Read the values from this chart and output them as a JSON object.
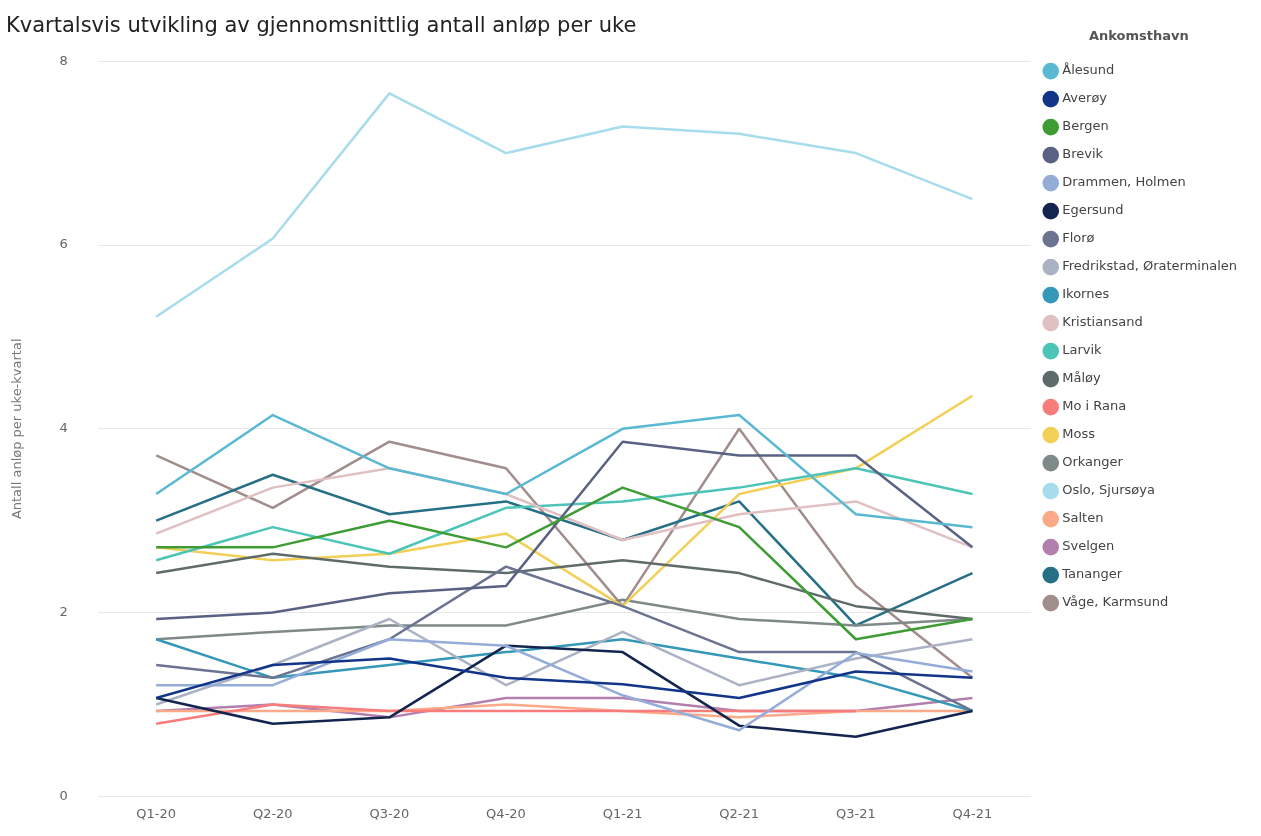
{
  "chart_data": {
    "type": "line",
    "title": "Kvartalsvis utvikling av gjennomsnittlig antall anløp per uke",
    "ylabel": "Antall anløp per uke-kvartal",
    "legend_title": "Ankomsthavn",
    "legend": "right",
    "grid": "y",
    "marker": "none",
    "line_style": "solid",
    "categories": [
      "Q1-20",
      "Q2-20",
      "Q3-20",
      "Q4-20",
      "Q1-21",
      "Q2-21",
      "Q3-21",
      "Q4-21"
    ],
    "ylim": [
      0,
      8
    ],
    "yticks": [
      0,
      2,
      4,
      6,
      8
    ],
    "series": [
      {
        "name": "Ålesund",
        "color": "#5ab9d2",
        "values": [
          3.29,
          4.15,
          3.57,
          3.29,
          4.0,
          4.15,
          3.07,
          2.93
        ]
      },
      {
        "name": "Averøy",
        "color": "#12358a",
        "values": [
          1.07,
          1.43,
          1.5,
          1.29,
          1.22,
          1.07,
          1.36,
          1.29
        ]
      },
      {
        "name": "Bergen",
        "color": "#3e9c35",
        "values": [
          2.71,
          2.71,
          3.0,
          2.71,
          3.36,
          2.93,
          1.71,
          1.93
        ]
      },
      {
        "name": "Brevik",
        "color": "#5a6283",
        "values": [
          1.93,
          2.0,
          2.21,
          2.29,
          3.86,
          3.71,
          3.71,
          2.71
        ]
      },
      {
        "name": "Drammen, Holmen",
        "color": "#94acd8",
        "values": [
          1.21,
          1.21,
          1.71,
          1.64,
          1.1,
          0.72,
          1.56,
          1.36
        ]
      },
      {
        "name": "Egersund",
        "color": "#13254f",
        "values": [
          1.07,
          0.79,
          0.86,
          1.64,
          1.57,
          0.77,
          0.65,
          0.93
        ]
      },
      {
        "name": "Florø",
        "color": "#6b7390",
        "values": [
          1.43,
          1.29,
          1.71,
          2.5,
          2.07,
          1.57,
          1.57,
          0.93
        ]
      },
      {
        "name": "Fredrikstad, Øraterminalen",
        "color": "#aab2c4",
        "values": [
          1.0,
          1.43,
          1.93,
          1.21,
          1.79,
          1.21,
          1.5,
          1.71
        ]
      },
      {
        "name": "Ikornes",
        "color": "#3598b8",
        "values": [
          1.71,
          1.29,
          1.43,
          1.57,
          1.71,
          1.5,
          1.29,
          0.93
        ]
      },
      {
        "name": "Kristiansand",
        "color": "#e0c0c2",
        "values": [
          2.86,
          3.36,
          3.57,
          3.29,
          2.79,
          3.07,
          3.21,
          2.71
        ]
      },
      {
        "name": "Larvik",
        "color": "#4cc5b8",
        "values": [
          2.57,
          2.93,
          2.64,
          3.14,
          3.21,
          3.36,
          3.57,
          3.29
        ]
      },
      {
        "name": "Måløy",
        "color": "#5f6b6b",
        "values": [
          2.43,
          2.64,
          2.5,
          2.43,
          2.57,
          2.43,
          2.07,
          1.93
        ]
      },
      {
        "name": "Mo i Rana",
        "color": "#f87c7c",
        "values": [
          0.79,
          1.0,
          0.93,
          0.93,
          0.93,
          0.93,
          0.93,
          null
        ]
      },
      {
        "name": "Moss",
        "color": "#f2d058",
        "values": [
          2.71,
          2.57,
          2.64,
          2.86,
          2.07,
          3.29,
          3.57,
          4.36
        ]
      },
      {
        "name": "Orkanger",
        "color": "#7f8a88",
        "values": [
          1.71,
          1.79,
          1.86,
          1.86,
          2.14,
          1.93,
          1.86,
          1.93
        ]
      },
      {
        "name": "Oslo, Sjursøya",
        "color": "#a6dcec",
        "values": [
          5.22,
          6.07,
          7.65,
          7.0,
          7.29,
          7.21,
          7.0,
          6.5
        ]
      },
      {
        "name": "Salten",
        "color": "#fba988",
        "values": [
          0.93,
          0.93,
          0.93,
          1.0,
          0.93,
          0.86,
          0.93,
          0.93
        ]
      },
      {
        "name": "Svelgen",
        "color": "#b27fae",
        "values": [
          0.93,
          1.0,
          0.86,
          1.07,
          1.07,
          0.93,
          0.93,
          1.07
        ]
      },
      {
        "name": "Tananger",
        "color": "#266f86",
        "values": [
          3.0,
          3.5,
          3.07,
          3.21,
          2.79,
          3.21,
          1.86,
          2.43
        ]
      },
      {
        "name": "Våge, Karmsund",
        "color": "#a18d8b",
        "values": [
          3.71,
          3.14,
          3.86,
          3.57,
          2.07,
          4.0,
          2.29,
          1.29
        ]
      }
    ]
  }
}
